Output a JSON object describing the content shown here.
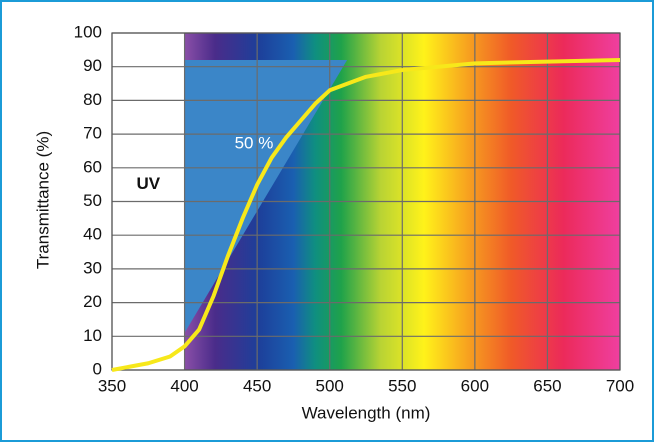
{
  "chart_data": {
    "type": "line",
    "x_label": "Wavelength (nm)",
    "y_label": "Transmittance (%)",
    "x": [
      350,
      375,
      390,
      400,
      410,
      420,
      430,
      440,
      450,
      460,
      470,
      480,
      490,
      500,
      525,
      550,
      600,
      650,
      700
    ],
    "values": [
      0,
      2,
      4,
      7,
      12,
      22,
      34,
      45,
      55,
      63,
      69,
      74,
      79,
      83,
      87,
      89,
      91,
      91.5,
      92
    ],
    "color": "#f7e81a",
    "xlim": [
      350,
      700
    ],
    "xticks": [
      350,
      400,
      450,
      500,
      550,
      600,
      650,
      700
    ],
    "ylim": [
      0,
      100
    ],
    "yticks": [
      0,
      10,
      20,
      30,
      40,
      50,
      60,
      70,
      80,
      90,
      100
    ],
    "grid": true,
    "shaded_region": {
      "x": [
        400,
        512,
        400
      ],
      "y": [
        92,
        92,
        11
      ],
      "color": "#3b86c8",
      "label": "50 %"
    },
    "uv_label": "UV"
  }
}
